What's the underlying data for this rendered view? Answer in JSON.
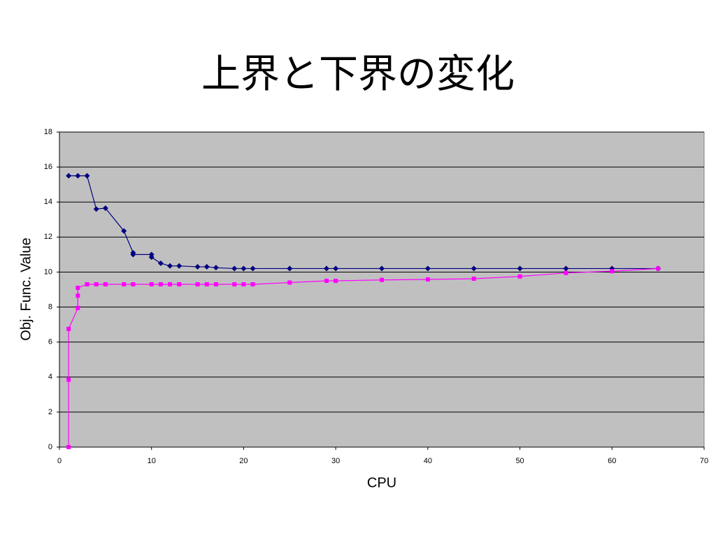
{
  "chart_data": {
    "type": "line",
    "title": "上界と下界の変化",
    "x_label": "CPU",
    "y_label": "Obj. Func. Value",
    "xlim": [
      0,
      70
    ],
    "xticks": [
      0,
      10,
      20,
      30,
      40,
      50,
      60,
      70
    ],
    "ylim": [
      0,
      18
    ],
    "yticks": [
      0,
      2,
      4,
      6,
      8,
      10,
      12,
      14,
      16,
      18
    ],
    "grid": true,
    "background": "#c0c0c0",
    "series": [
      {
        "color": "#000080",
        "marker": "diamond",
        "x": [
          1,
          2,
          3,
          4,
          5,
          7,
          8,
          8,
          10,
          10,
          11,
          12,
          13,
          15,
          16,
          17,
          19,
          20,
          21,
          25,
          29,
          30,
          35,
          40,
          45,
          50,
          55,
          60,
          65
        ],
        "values": [
          15.5,
          15.5,
          15.5,
          13.6,
          13.65,
          12.35,
          11.1,
          11.0,
          11.0,
          10.85,
          10.5,
          10.35,
          10.35,
          10.3,
          10.3,
          10.25,
          10.2,
          10.2,
          10.2,
          10.2,
          10.2,
          10.2,
          10.2,
          10.2,
          10.2,
          10.2,
          10.2,
          10.2,
          10.2
        ]
      },
      {
        "color": "#ff00ff",
        "marker": "square",
        "x": [
          1,
          1,
          1,
          2,
          2,
          2,
          3,
          4,
          5,
          7,
          8,
          10,
          11,
          12,
          13,
          15,
          16,
          17,
          19,
          20,
          21,
          25,
          29,
          30,
          35,
          40,
          45,
          50,
          55,
          60,
          65
        ],
        "values": [
          0,
          3.85,
          6.75,
          7.95,
          8.65,
          9.1,
          9.3,
          9.3,
          9.3,
          9.3,
          9.3,
          9.3,
          9.3,
          9.3,
          9.3,
          9.3,
          9.3,
          9.3,
          9.3,
          9.3,
          9.3,
          9.4,
          9.5,
          9.5,
          9.55,
          9.58,
          9.62,
          9.75,
          9.95,
          10.05,
          10.2
        ]
      }
    ]
  }
}
